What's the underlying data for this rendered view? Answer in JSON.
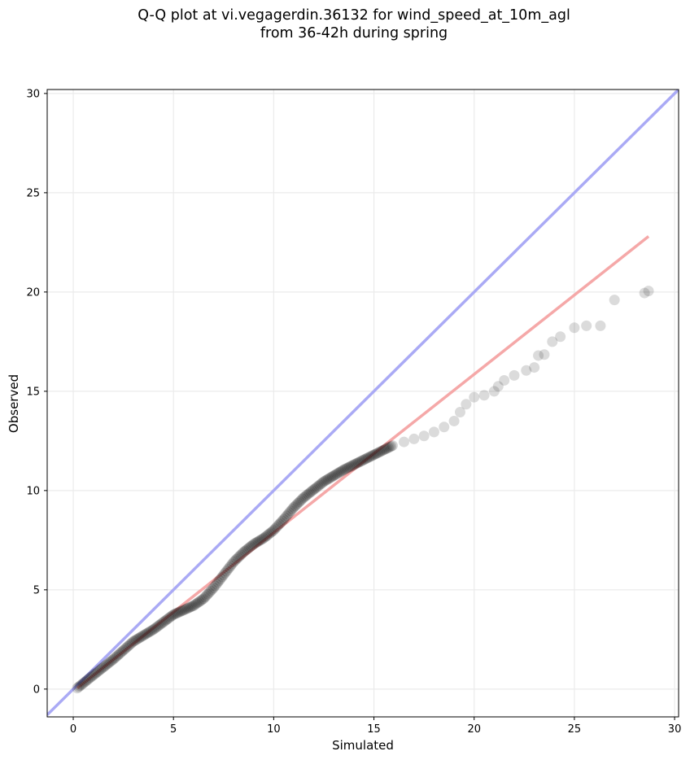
{
  "chart_data": {
    "type": "scatter",
    "title_line1": "Q-Q plot at vi.vegagerdin.36132 for wind_speed_at_10m_agl",
    "title_line2": "from 36-42h during spring",
    "xlabel": "Simulated",
    "ylabel": "Observed",
    "xlim": [
      -1.3,
      30.2
    ],
    "ylim": [
      -1.4,
      30.2
    ],
    "xticks": [
      0,
      5,
      10,
      15,
      20,
      25,
      30
    ],
    "yticks": [
      0,
      5,
      10,
      15,
      20,
      25,
      30
    ],
    "grid": true,
    "colors": {
      "points": "#000000",
      "identity_line": "#aaaaf5",
      "fit_line": "#f5a8a8"
    },
    "identity_line": {
      "x": [
        -1.3,
        30.2
      ],
      "y": [
        -1.3,
        30.2
      ]
    },
    "fit_line": {
      "x": [
        0.2,
        28.7
      ],
      "y": [
        0.05,
        22.8
      ]
    },
    "dense_curve": {
      "x": [
        0.2,
        1.0,
        2.0,
        3.0,
        4.0,
        5.0,
        6.0,
        6.5,
        7.0,
        7.5,
        8.0,
        8.5,
        9.0,
        9.5,
        10.0,
        10.5,
        11.0,
        11.5,
        12.0,
        12.5,
        13.0,
        13.5,
        14.0,
        14.5,
        15.0,
        15.5,
        16.0
      ],
      "y": [
        0.05,
        0.7,
        1.5,
        2.4,
        3.0,
        3.75,
        4.2,
        4.55,
        5.1,
        5.75,
        6.4,
        6.9,
        7.3,
        7.6,
        8.0,
        8.55,
        9.15,
        9.65,
        10.05,
        10.45,
        10.75,
        11.05,
        11.3,
        11.55,
        11.8,
        12.05,
        12.3
      ]
    },
    "tail_points": {
      "x": [
        16.5,
        17.0,
        17.5,
        18.0,
        18.5,
        19.0,
        19.3,
        19.6,
        20.0,
        20.5,
        21.0,
        21.2,
        21.5,
        22.0,
        22.6,
        23.0,
        23.2,
        23.5,
        23.9,
        24.3,
        25.0,
        25.6,
        26.3,
        27.0,
        28.5,
        28.7
      ],
      "y": [
        12.45,
        12.6,
        12.75,
        12.95,
        13.2,
        13.5,
        13.95,
        14.35,
        14.7,
        14.8,
        15.0,
        15.25,
        15.55,
        15.8,
        16.05,
        16.2,
        16.8,
        16.85,
        17.5,
        17.75,
        18.2,
        18.3,
        18.3,
        19.6,
        19.95,
        20.05
      ]
    }
  }
}
